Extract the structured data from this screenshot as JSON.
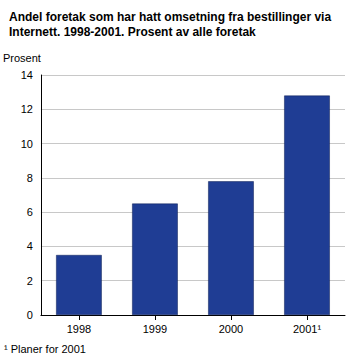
{
  "chart_data": {
    "type": "bar",
    "title": "Andel foretak som har hatt omsetning fra bestillinger via Internett. 1998-2001. Prosent av alle foretak",
    "ylabel": "Prosent",
    "categories": [
      "1998",
      "1999",
      "2000",
      "2001¹"
    ],
    "values": [
      3.5,
      6.5,
      7.8,
      12.8
    ],
    "color": "#1f3d94",
    "ylim": [
      0,
      14
    ],
    "yticks": [
      0,
      2,
      4,
      6,
      8,
      10,
      12,
      14
    ],
    "grid": true,
    "annotation": "¹ Planer for 2001"
  }
}
